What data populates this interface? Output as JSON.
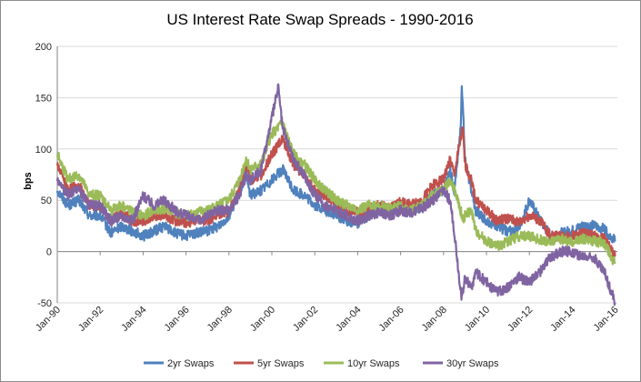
{
  "chart_data": {
    "type": "line",
    "title": "US Interest Rate Swap Spreads - 1990-2016",
    "ylabel": "bps",
    "xlabel": "",
    "ylim": [
      -50,
      200
    ],
    "yticks": [
      -50,
      0,
      50,
      100,
      150,
      200
    ],
    "xlim": [
      1990.0,
      2016.1
    ],
    "xticks": [
      {
        "label": "Jan-90",
        "x": 1990
      },
      {
        "label": "Jan-92",
        "x": 1992
      },
      {
        "label": "Jan-94",
        "x": 1994
      },
      {
        "label": "Jan-96",
        "x": 1996
      },
      {
        "label": "Jan-98",
        "x": 1998
      },
      {
        "label": "Jan-00",
        "x": 2000
      },
      {
        "label": "Jan-02",
        "x": 2002
      },
      {
        "label": "Jan-04",
        "x": 2004
      },
      {
        "label": "Jan-06",
        "x": 2006
      },
      {
        "label": "Jan-08",
        "x": 2008
      },
      {
        "label": "Jan-10",
        "x": 2010
      },
      {
        "label": "Jan-12",
        "x": 2012
      },
      {
        "label": "Jan-14",
        "x": 2014
      },
      {
        "label": "Jan-16",
        "x": 2016
      }
    ],
    "grid": "horizontal",
    "legend_position": "bottom",
    "series": [
      {
        "name": "2yr Swaps",
        "color": "#4f81bd",
        "points": [
          [
            1990,
            60
          ],
          [
            1990.5,
            45
          ],
          [
            1991,
            50
          ],
          [
            1991.5,
            35
          ],
          [
            1992,
            35
          ],
          [
            1992.5,
            18
          ],
          [
            1993,
            25
          ],
          [
            1993.5,
            20
          ],
          [
            1994,
            15
          ],
          [
            1994.5,
            20
          ],
          [
            1995,
            25
          ],
          [
            1995.5,
            18
          ],
          [
            1996,
            15
          ],
          [
            1996.5,
            18
          ],
          [
            1997,
            20
          ],
          [
            1997.5,
            25
          ],
          [
            1998,
            35
          ],
          [
            1998.5,
            60
          ],
          [
            1998.8,
            75
          ],
          [
            1999,
            55
          ],
          [
            1999.5,
            60
          ],
          [
            2000,
            70
          ],
          [
            2000.5,
            80
          ],
          [
            2001,
            60
          ],
          [
            2001.5,
            55
          ],
          [
            2002,
            45
          ],
          [
            2002.5,
            40
          ],
          [
            2003,
            35
          ],
          [
            2003.5,
            30
          ],
          [
            2004,
            28
          ],
          [
            2004.5,
            35
          ],
          [
            2005,
            40
          ],
          [
            2005.5,
            38
          ],
          [
            2006,
            45
          ],
          [
            2006.5,
            40
          ],
          [
            2007,
            45
          ],
          [
            2007.5,
            55
          ],
          [
            2008,
            60
          ],
          [
            2008.3,
            80
          ],
          [
            2008.5,
            60
          ],
          [
            2008.8,
            120
          ],
          [
            2008.85,
            165
          ],
          [
            2009,
            90
          ],
          [
            2009.3,
            60
          ],
          [
            2009.5,
            40
          ],
          [
            2010,
            30
          ],
          [
            2010.5,
            25
          ],
          [
            2011,
            20
          ],
          [
            2011.5,
            22
          ],
          [
            2012,
            50
          ],
          [
            2012.5,
            30
          ],
          [
            2013,
            15
          ],
          [
            2013.5,
            18
          ],
          [
            2014,
            20
          ],
          [
            2014.5,
            25
          ],
          [
            2015,
            25
          ],
          [
            2015.5,
            22
          ],
          [
            2016,
            10
          ]
        ]
      },
      {
        "name": "5yr Swaps",
        "color": "#c0504d",
        "points": [
          [
            1990,
            85
          ],
          [
            1990.5,
            60
          ],
          [
            1991,
            65
          ],
          [
            1991.5,
            45
          ],
          [
            1992,
            45
          ],
          [
            1992.5,
            30
          ],
          [
            1993,
            38
          ],
          [
            1993.5,
            30
          ],
          [
            1994,
            30
          ],
          [
            1994.5,
            35
          ],
          [
            1995,
            35
          ],
          [
            1995.5,
            30
          ],
          [
            1996,
            28
          ],
          [
            1996.5,
            30
          ],
          [
            1997,
            30
          ],
          [
            1997.5,
            35
          ],
          [
            1998,
            40
          ],
          [
            1998.5,
            60
          ],
          [
            1998.8,
            85
          ],
          [
            1999,
            70
          ],
          [
            1999.5,
            75
          ],
          [
            2000,
            95
          ],
          [
            2000.5,
            110
          ],
          [
            2001,
            85
          ],
          [
            2001.5,
            75
          ],
          [
            2002,
            60
          ],
          [
            2002.5,
            55
          ],
          [
            2003,
            45
          ],
          [
            2003.5,
            40
          ],
          [
            2004,
            38
          ],
          [
            2004.5,
            42
          ],
          [
            2005,
            45
          ],
          [
            2005.5,
            42
          ],
          [
            2006,
            48
          ],
          [
            2006.5,
            45
          ],
          [
            2007,
            50
          ],
          [
            2007.5,
            65
          ],
          [
            2008,
            70
          ],
          [
            2008.3,
            90
          ],
          [
            2008.5,
            75
          ],
          [
            2008.8,
            110
          ],
          [
            2008.9,
            120
          ],
          [
            2009,
            85
          ],
          [
            2009.3,
            70
          ],
          [
            2009.5,
            50
          ],
          [
            2010,
            40
          ],
          [
            2010.5,
            30
          ],
          [
            2011,
            32
          ],
          [
            2011.5,
            28
          ],
          [
            2012,
            35
          ],
          [
            2012.5,
            30
          ],
          [
            2013,
            15
          ],
          [
            2013.5,
            15
          ],
          [
            2014,
            15
          ],
          [
            2014.5,
            18
          ],
          [
            2015,
            15
          ],
          [
            2015.5,
            12
          ],
          [
            2016,
            -5
          ]
        ]
      },
      {
        "name": "10yr Swaps",
        "color": "#9bbb59",
        "points": [
          [
            1990,
            95
          ],
          [
            1990.5,
            70
          ],
          [
            1991,
            75
          ],
          [
            1991.5,
            55
          ],
          [
            1992,
            55
          ],
          [
            1992.5,
            40
          ],
          [
            1993,
            45
          ],
          [
            1993.5,
            38
          ],
          [
            1994,
            35
          ],
          [
            1994.5,
            40
          ],
          [
            1995,
            42
          ],
          [
            1995.5,
            38
          ],
          [
            1996,
            35
          ],
          [
            1996.5,
            38
          ],
          [
            1997,
            40
          ],
          [
            1997.5,
            45
          ],
          [
            1998,
            50
          ],
          [
            1998.5,
            70
          ],
          [
            1998.8,
            90
          ],
          [
            1999,
            80
          ],
          [
            1999.5,
            85
          ],
          [
            2000,
            115
          ],
          [
            2000.5,
            125
          ],
          [
            2001,
            95
          ],
          [
            2001.5,
            85
          ],
          [
            2002,
            70
          ],
          [
            2002.5,
            60
          ],
          [
            2003,
            50
          ],
          [
            2003.5,
            45
          ],
          [
            2004,
            40
          ],
          [
            2004.5,
            45
          ],
          [
            2005,
            45
          ],
          [
            2005.5,
            42
          ],
          [
            2006,
            45
          ],
          [
            2006.5,
            40
          ],
          [
            2007,
            45
          ],
          [
            2007.5,
            55
          ],
          [
            2008,
            60
          ],
          [
            2008.3,
            70
          ],
          [
            2008.5,
            60
          ],
          [
            2008.8,
            40
          ],
          [
            2008.9,
            30
          ],
          [
            2009,
            35
          ],
          [
            2009.3,
            40
          ],
          [
            2009.5,
            20
          ],
          [
            2010,
            10
          ],
          [
            2010.5,
            5
          ],
          [
            2011,
            10
          ],
          [
            2011.5,
            15
          ],
          [
            2012,
            15
          ],
          [
            2012.5,
            12
          ],
          [
            2013,
            10
          ],
          [
            2013.5,
            12
          ],
          [
            2014,
            10
          ],
          [
            2014.5,
            12
          ],
          [
            2015,
            10
          ],
          [
            2015.5,
            8
          ],
          [
            2016,
            -12
          ]
        ]
      },
      {
        "name": "30yr Swaps",
        "color": "#8064a2",
        "points": [
          [
            1990,
            70
          ],
          [
            1990.5,
            55
          ],
          [
            1991,
            60
          ],
          [
            1991.5,
            45
          ],
          [
            1992,
            45
          ],
          [
            1992.5,
            30
          ],
          [
            1993,
            35
          ],
          [
            1993.5,
            30
          ],
          [
            1994,
            55
          ],
          [
            1994.5,
            45
          ],
          [
            1995,
            50
          ],
          [
            1995.5,
            40
          ],
          [
            1996,
            35
          ],
          [
            1996.5,
            30
          ],
          [
            1997,
            35
          ],
          [
            1997.5,
            40
          ],
          [
            1998,
            40
          ],
          [
            1998.5,
            55
          ],
          [
            1998.8,
            75
          ],
          [
            1999,
            70
          ],
          [
            1999.5,
            80
          ],
          [
            2000,
            130
          ],
          [
            2000.3,
            160
          ],
          [
            2000.5,
            120
          ],
          [
            2001,
            90
          ],
          [
            2001.5,
            75
          ],
          [
            2002,
            55
          ],
          [
            2002.5,
            45
          ],
          [
            2003,
            40
          ],
          [
            2003.5,
            35
          ],
          [
            2004,
            30
          ],
          [
            2004.5,
            35
          ],
          [
            2005,
            38
          ],
          [
            2005.5,
            35
          ],
          [
            2006,
            40
          ],
          [
            2006.5,
            38
          ],
          [
            2007,
            42
          ],
          [
            2007.5,
            50
          ],
          [
            2008,
            60
          ],
          [
            2008.3,
            50
          ],
          [
            2008.5,
            20
          ],
          [
            2008.7,
            -20
          ],
          [
            2008.85,
            -45
          ],
          [
            2009,
            -25
          ],
          [
            2009.3,
            -35
          ],
          [
            2009.5,
            -20
          ],
          [
            2010,
            -30
          ],
          [
            2010.5,
            -40
          ],
          [
            2011,
            -35
          ],
          [
            2011.5,
            -25
          ],
          [
            2012,
            -30
          ],
          [
            2012.5,
            -20
          ],
          [
            2013,
            -5
          ],
          [
            2013.5,
            0
          ],
          [
            2014,
            0
          ],
          [
            2014.5,
            -5
          ],
          [
            2015,
            -5
          ],
          [
            2015.5,
            -20
          ],
          [
            2016,
            -50
          ]
        ]
      }
    ]
  }
}
